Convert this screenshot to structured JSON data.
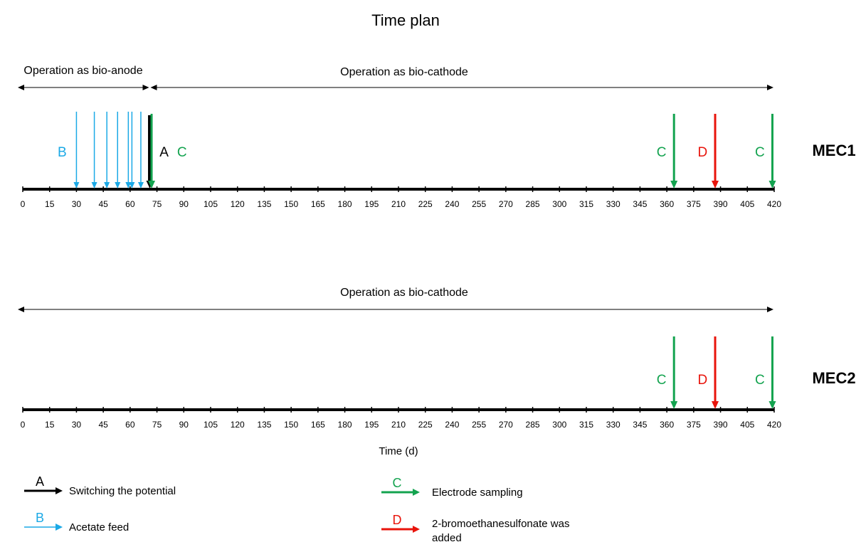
{
  "title": "Time plan",
  "axis": {
    "xlabel": "Time (d)",
    "min": 0,
    "max": 420,
    "ticks": [
      "0",
      "15",
      "30",
      "45",
      "60",
      "75",
      "90",
      "105",
      "120",
      "135",
      "150",
      "165",
      "180",
      "195",
      "210",
      "225",
      "240",
      "255",
      "270",
      "285",
      "300",
      "315",
      "330",
      "345",
      "360",
      "375",
      "390",
      "405",
      "420"
    ]
  },
  "colors": {
    "switch": "#000000",
    "feed": "#1BA9E6",
    "sampling": "#13A34F",
    "bes": "#E8140B"
  },
  "timelines": [
    {
      "name": "MEC1",
      "phases": [
        {
          "label": "Operation as bio-anode",
          "start": 0,
          "end": 71
        },
        {
          "label": "Operation as bio-cathode",
          "start": 71,
          "end": 420
        }
      ],
      "events": [
        {
          "type": "feed",
          "day": 30
        },
        {
          "type": "feed",
          "day": 40
        },
        {
          "type": "feed",
          "day": 47
        },
        {
          "type": "feed",
          "day": 53
        },
        {
          "type": "feed",
          "day": 59
        },
        {
          "type": "feed",
          "day": 61
        },
        {
          "type": "feed",
          "day": 66
        },
        {
          "type": "switch",
          "day": 71
        },
        {
          "type": "sampling",
          "day": 72
        },
        {
          "type": "sampling",
          "day": 364
        },
        {
          "type": "bes",
          "day": 387
        },
        {
          "type": "sampling",
          "day": 419
        }
      ],
      "letters": [
        {
          "text": "B",
          "type": "feed",
          "day": 22
        },
        {
          "text": "A",
          "type": "switch",
          "day": 79
        },
        {
          "text": "C",
          "type": "sampling",
          "day": 89
        },
        {
          "text": "C",
          "type": "sampling",
          "day": 357
        },
        {
          "text": "D",
          "type": "bes",
          "day": 380
        },
        {
          "text": "C",
          "type": "sampling",
          "day": 412
        }
      ]
    },
    {
      "name": "MEC2",
      "phases": [
        {
          "label": "Operation as bio-cathode",
          "start": 0,
          "end": 420
        }
      ],
      "events": [
        {
          "type": "sampling",
          "day": 364
        },
        {
          "type": "bes",
          "day": 387
        },
        {
          "type": "sampling",
          "day": 419
        }
      ],
      "letters": [
        {
          "text": "C",
          "type": "sampling",
          "day": 357
        },
        {
          "text": "D",
          "type": "bes",
          "day": 380
        },
        {
          "text": "C",
          "type": "sampling",
          "day": 412
        }
      ]
    }
  ],
  "legend": [
    {
      "letter": "A",
      "type": "switch",
      "label": "Switching the potential"
    },
    {
      "letter": "B",
      "type": "feed",
      "label": "Acetate feed"
    },
    {
      "letter": "C",
      "type": "sampling",
      "label": "Electrode sampling"
    },
    {
      "letter": "D",
      "type": "bes",
      "label": "2-bromoethanesulfonate was added"
    }
  ]
}
